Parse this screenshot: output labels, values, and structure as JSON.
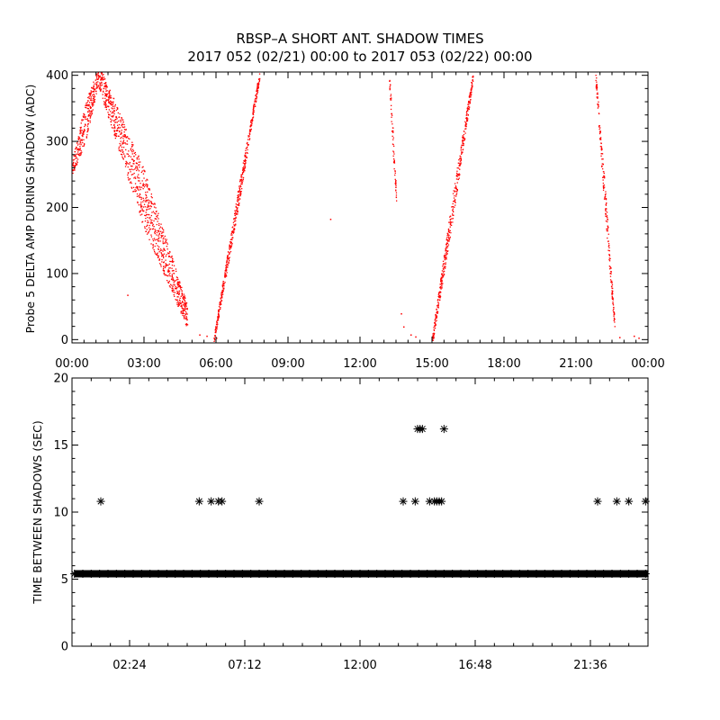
{
  "figure": {
    "title_line1": "RBSP–A SHORT ANT. SHADOW TIMES",
    "title_line2": "2017 052 (02/21) 00:00 to 2017 053 (02/22) 00:00"
  },
  "chart_data": [
    {
      "type": "scatter",
      "ylabel": "Probe 5 DELTA AMP DURING SHADOW (ADC)",
      "xlabel": "",
      "xlim": [
        0,
        24
      ],
      "ylim": [
        -5,
        405
      ],
      "x_unit": "hours",
      "xtick_values": [
        0,
        3,
        6,
        9,
        12,
        15,
        18,
        21,
        24
      ],
      "xtick_labels": [
        "00:00",
        "03:00",
        "06:00",
        "09:00",
        "12:00",
        "15:00",
        "18:00",
        "21:00",
        "00:00"
      ],
      "ytick_values": [
        0,
        100,
        200,
        300,
        400
      ],
      "ytick_labels": [
        "0",
        "100",
        "200",
        "300",
        "400"
      ],
      "marker": "dot",
      "color": "#ff0000",
      "grid": false,
      "bands": [
        {
          "x_start": 0.0,
          "x_end": 1.1,
          "y_start": 260,
          "y_end": 400,
          "spread": 60,
          "rising": true
        },
        {
          "x_start": 1.1,
          "x_end": 4.8,
          "y_start": 400,
          "y_end": 35,
          "spread": 90,
          "rising": false
        },
        {
          "x_start": 5.9,
          "x_end": 7.8,
          "y_start": 0,
          "y_end": 400,
          "spread": 30,
          "rising": true
        },
        {
          "x_start": 13.2,
          "x_end": 13.5,
          "y_start": 400,
          "y_end": 215,
          "spread": 40,
          "rising": false
        },
        {
          "x_start": 15.0,
          "x_end": 16.7,
          "y_start": 0,
          "y_end": 400,
          "spread": 40,
          "rising": true
        },
        {
          "x_start": 21.8,
          "x_end": 22.6,
          "y_start": 400,
          "y_end": 20,
          "spread": 45,
          "rising": false
        }
      ],
      "points": [
        [
          2.3,
          68
        ],
        [
          5.3,
          8
        ],
        [
          5.6,
          6
        ],
        [
          10.75,
          183
        ],
        [
          13.7,
          40
        ],
        [
          13.8,
          20
        ],
        [
          14.1,
          8
        ],
        [
          14.3,
          5
        ],
        [
          23.6,
          3
        ],
        [
          23.4,
          6
        ],
        [
          22.8,
          4
        ],
        [
          6.0,
          3
        ]
      ]
    },
    {
      "type": "scatter",
      "ylabel": "TIME BETWEEN SHADOWS (SEC)",
      "xlabel": "",
      "xlim": [
        0,
        24
      ],
      "ylim": [
        0,
        20
      ],
      "x_unit": "hours",
      "xtick_values": [
        2.4,
        7.2,
        12.0,
        16.8,
        21.6
      ],
      "xtick_labels": [
        "02:24",
        "07:12",
        "12:00",
        "16:48",
        "21:36"
      ],
      "ytick_values": [
        0,
        5,
        10,
        15,
        20
      ],
      "ytick_labels": [
        "0",
        "5",
        "10",
        "15",
        "20"
      ],
      "marker": "asterisk",
      "color": "#000000",
      "grid": false,
      "baseline_value": 5.4,
      "baseline_x_range": [
        0.1,
        24
      ],
      "points": [
        [
          1.2,
          10.8
        ],
        [
          5.3,
          10.8
        ],
        [
          5.8,
          10.8
        ],
        [
          6.1,
          10.8
        ],
        [
          6.25,
          10.8
        ],
        [
          7.8,
          10.8
        ],
        [
          13.8,
          10.8
        ],
        [
          14.3,
          10.8
        ],
        [
          14.4,
          16.2
        ],
        [
          14.5,
          16.2
        ],
        [
          14.6,
          16.2
        ],
        [
          14.9,
          10.8
        ],
        [
          15.1,
          10.8
        ],
        [
          15.2,
          10.8
        ],
        [
          15.3,
          10.8
        ],
        [
          15.4,
          10.8
        ],
        [
          15.5,
          16.2
        ],
        [
          21.9,
          10.8
        ],
        [
          22.7,
          10.8
        ],
        [
          23.2,
          10.8
        ],
        [
          23.9,
          10.8
        ]
      ]
    }
  ]
}
